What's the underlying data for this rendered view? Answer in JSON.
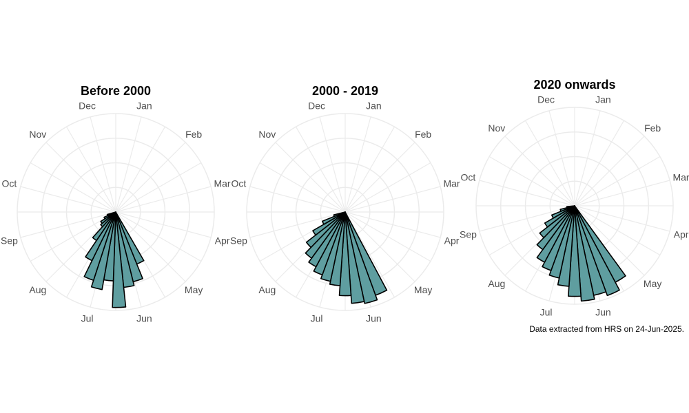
{
  "theme": {
    "bar_fill": "#5f9ea0",
    "bar_stroke": "#000000",
    "grid_color": "#ebebeb",
    "label_color": "#4d4d4d"
  },
  "caption": "Data extracted from HRS on 24-Jun-2025.",
  "chart_data": [
    {
      "type": "bar",
      "coordinate_system": "polar",
      "title": "Before 2000",
      "month_labels": [
        "Jan",
        "Feb",
        "Mar",
        "Apr",
        "May",
        "Jun",
        "Jul",
        "Aug",
        "Sep",
        "Oct",
        "Nov",
        "Dec"
      ],
      "direction": "clockwise from top",
      "grid": true,
      "rmax": 1.0,
      "bars": [
        {
          "angle_deg": 154,
          "value": 0.57
        },
        {
          "angle_deg": 162,
          "value": 0.73
        },
        {
          "angle_deg": 170,
          "value": 0.77
        },
        {
          "angle_deg": 178,
          "value": 0.97
        },
        {
          "angle_deg": 186,
          "value": 0.7
        },
        {
          "angle_deg": 194,
          "value": 0.8
        },
        {
          "angle_deg": 202,
          "value": 0.73
        },
        {
          "angle_deg": 210,
          "value": 0.55
        },
        {
          "angle_deg": 218,
          "value": 0.35
        },
        {
          "angle_deg": 226,
          "value": 0.2
        },
        {
          "angle_deg": 234,
          "value": 0.18
        },
        {
          "angle_deg": 242,
          "value": 0.13
        },
        {
          "angle_deg": 250,
          "value": 0.09
        }
      ]
    },
    {
      "type": "bar",
      "coordinate_system": "polar",
      "title": "2000 - 2019",
      "month_labels": [
        "Jan",
        "Feb",
        "Mar",
        "Apr",
        "May",
        "Jun",
        "Jul",
        "Aug",
        "Sep",
        "Oct",
        "Nov",
        "Dec"
      ],
      "direction": "clockwise from top",
      "grid": true,
      "rmax": 1.0,
      "bars": [
        {
          "angle_deg": 156,
          "value": 0.9
        },
        {
          "angle_deg": 164,
          "value": 0.95
        },
        {
          "angle_deg": 172,
          "value": 0.93
        },
        {
          "angle_deg": 180,
          "value": 0.85
        },
        {
          "angle_deg": 188,
          "value": 0.75
        },
        {
          "angle_deg": 196,
          "value": 0.72
        },
        {
          "angle_deg": 204,
          "value": 0.68
        },
        {
          "angle_deg": 212,
          "value": 0.63
        },
        {
          "angle_deg": 220,
          "value": 0.58
        },
        {
          "angle_deg": 228,
          "value": 0.5
        },
        {
          "angle_deg": 236,
          "value": 0.38
        },
        {
          "angle_deg": 244,
          "value": 0.25
        },
        {
          "angle_deg": 252,
          "value": 0.12
        }
      ]
    },
    {
      "type": "bar",
      "coordinate_system": "polar",
      "title": "2020 onwards",
      "month_labels": [
        "Jan",
        "Feb",
        "Mar",
        "Apr",
        "May",
        "Jun",
        "Jul",
        "Aug",
        "Sep",
        "Oct",
        "Nov",
        "Dec"
      ],
      "direction": "clockwise from top",
      "grid": true,
      "rmax": 1.0,
      "bars": [
        {
          "angle_deg": 148,
          "value": 0.88
        },
        {
          "angle_deg": 156,
          "value": 0.97
        },
        {
          "angle_deg": 164,
          "value": 0.93
        },
        {
          "angle_deg": 172,
          "value": 0.97
        },
        {
          "angle_deg": 180,
          "value": 0.92
        },
        {
          "angle_deg": 188,
          "value": 0.82
        },
        {
          "angle_deg": 196,
          "value": 0.75
        },
        {
          "angle_deg": 204,
          "value": 0.7
        },
        {
          "angle_deg": 212,
          "value": 0.65
        },
        {
          "angle_deg": 220,
          "value": 0.55
        },
        {
          "angle_deg": 228,
          "value": 0.45
        },
        {
          "angle_deg": 236,
          "value": 0.35
        },
        {
          "angle_deg": 244,
          "value": 0.25
        },
        {
          "angle_deg": 252,
          "value": 0.15
        },
        {
          "angle_deg": 260,
          "value": 0.08
        }
      ]
    }
  ]
}
